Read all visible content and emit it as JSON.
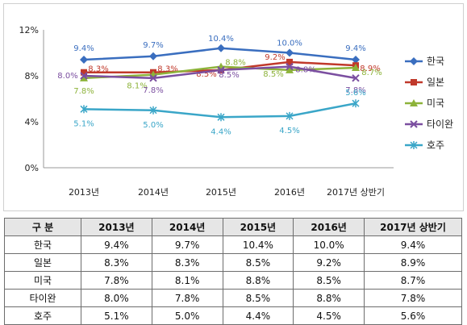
{
  "chart_data": {
    "type": "line",
    "categories": [
      "2013년",
      "2014년",
      "2015년",
      "2016년",
      "2017년 상반기"
    ],
    "y_ticks": [
      "0%",
      "4%",
      "8%",
      "12%"
    ],
    "ylim": [
      0,
      12
    ],
    "grid": false,
    "legend_position": "right",
    "series": [
      {
        "name": "한국",
        "color": "#3a6ebf",
        "marker": "diamond",
        "values": [
          9.4,
          9.7,
          10.4,
          10.0,
          9.4
        ],
        "labels": [
          "9.4%",
          "9.7%",
          "10.4%",
          "10.0%",
          "9.4%"
        ]
      },
      {
        "name": "일본",
        "color": "#c0392b",
        "marker": "square",
        "values": [
          8.3,
          8.3,
          8.5,
          9.2,
          8.9
        ],
        "labels": [
          "8.3%",
          "8.3%",
          "8.5%",
          "9.2%",
          "8.9%"
        ]
      },
      {
        "name": "미국",
        "color": "#8db33a",
        "marker": "triangle",
        "values": [
          7.8,
          8.1,
          8.8,
          8.5,
          8.7
        ],
        "labels": [
          "7.8%",
          "8.1%",
          "8.8%",
          "8.5%",
          "8.7%"
        ]
      },
      {
        "name": "타이완",
        "color": "#7b4fa0",
        "marker": "x",
        "values": [
          8.0,
          7.8,
          8.5,
          8.8,
          7.8
        ],
        "labels": [
          "8.0%",
          "7.8%",
          "8.5%",
          "8.8%",
          "7.8%"
        ]
      },
      {
        "name": "호주",
        "color": "#3aa6c8",
        "marker": "star",
        "values": [
          5.1,
          5.0,
          4.4,
          4.5,
          5.6
        ],
        "labels": [
          "5.1%",
          "5.0%",
          "4.4%",
          "4.5%",
          "5.6%"
        ]
      }
    ]
  },
  "table": {
    "header": [
      "구 분",
      "2013년",
      "2014년",
      "2015년",
      "2016년",
      "2017년 상반기"
    ],
    "rows": [
      [
        "한국",
        "9.4%",
        "9.7%",
        "10.4%",
        "10.0%",
        "9.4%"
      ],
      [
        "일본",
        "8.3%",
        "8.3%",
        "8.5%",
        "9.2%",
        "8.9%"
      ],
      [
        "미국",
        "7.8%",
        "8.1%",
        "8.8%",
        "8.5%",
        "8.7%"
      ],
      [
        "타이완",
        "8.0%",
        "7.8%",
        "8.5%",
        "8.8%",
        "7.8%"
      ],
      [
        "호주",
        "5.1%",
        "5.0%",
        "4.4%",
        "4.5%",
        "5.6%"
      ]
    ]
  }
}
